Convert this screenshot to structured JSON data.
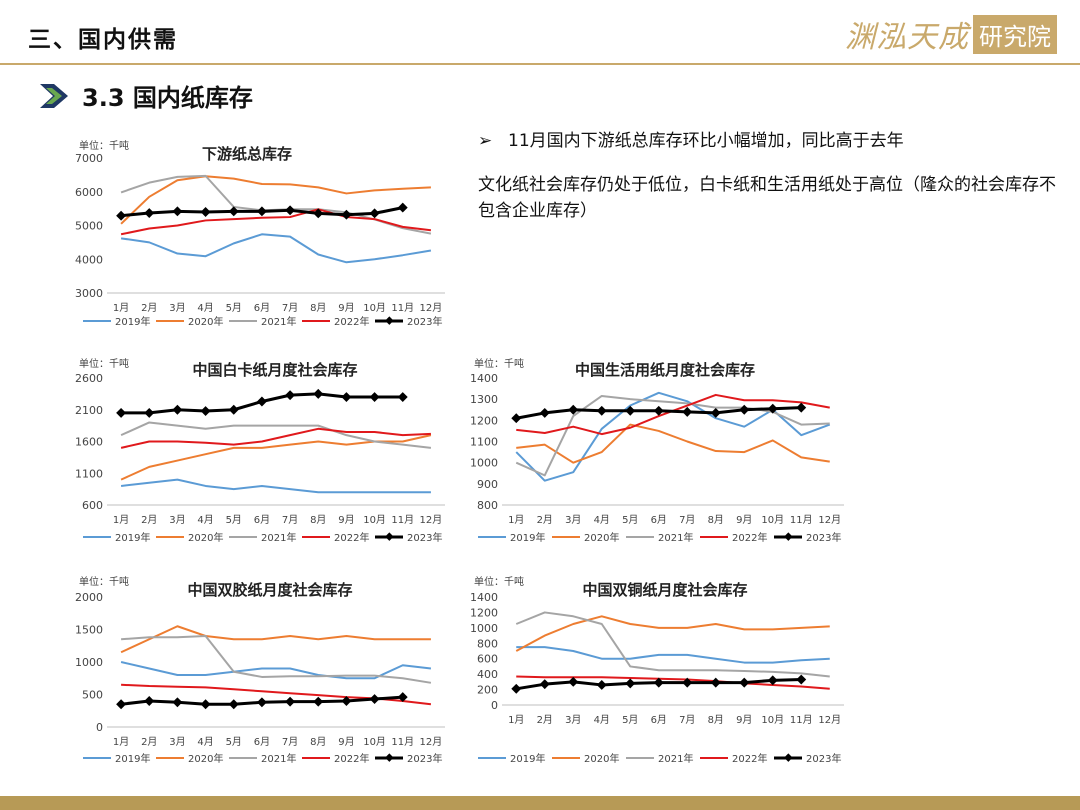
{
  "header": {
    "title": "三、国内供需",
    "logo_text": "渊泓天成",
    "logo_box": "研究院"
  },
  "section": {
    "title": "3.3 国内纸库存"
  },
  "notes": {
    "bullet": "➢",
    "line1": "11月国内下游纸总库存环比小幅增加，同比高于去年",
    "line2": "文化纸社会库存仍处于低位，白卡纸和生活用纸处于高位（隆众的社会库存不包含企业库存）"
  },
  "colors": {
    "2019年": "#5b9bd5",
    "2020年": "#ed7d31",
    "2021年": "#a5a5a5",
    "2022年": "#e0191c",
    "2023年": "#000000",
    "gold": "#c9a96b",
    "arrow": "#1f3864"
  },
  "chart_data": [
    {
      "type": "line",
      "title": "下游纸总库存",
      "unit": "单位：千吨",
      "categories": [
        "1月",
        "2月",
        "3月",
        "4月",
        "5月",
        "6月",
        "7月",
        "8月",
        "9月",
        "10月",
        "11月",
        "12月"
      ],
      "ylim": [
        3000,
        7000
      ],
      "yticks": [
        3000,
        4000,
        5000,
        6000,
        7000
      ],
      "legend": "bottom",
      "series": [
        {
          "name": "2019年",
          "values": [
            4620,
            4500,
            4170,
            4090,
            4470,
            4740,
            4670,
            4140,
            3910,
            4000,
            4120,
            4260
          ]
        },
        {
          "name": "2020年",
          "values": [
            5050,
            5850,
            6340,
            6460,
            6390,
            6230,
            6220,
            6130,
            5950,
            6040,
            6090,
            6130
          ]
        },
        {
          "name": "2021年",
          "values": [
            5980,
            6270,
            6440,
            6470,
            5550,
            5450,
            5480,
            5480,
            5390,
            5180,
            4920,
            4760
          ]
        },
        {
          "name": "2022年",
          "values": [
            4740,
            4910,
            5000,
            5150,
            5190,
            5230,
            5250,
            5480,
            5250,
            5190,
            4960,
            4860
          ]
        },
        {
          "name": "2023年",
          "values": [
            5290,
            5370,
            5420,
            5400,
            5420,
            5420,
            5450,
            5360,
            5320,
            5360,
            5530,
            null
          ]
        }
      ]
    },
    {
      "type": "line",
      "title": "中国白卡纸月度社会库存",
      "unit": "单位：千吨",
      "categories": [
        "1月",
        "2月",
        "3月",
        "4月",
        "5月",
        "6月",
        "7月",
        "8月",
        "9月",
        "10月",
        "11月",
        "12月"
      ],
      "ylim": [
        600,
        2600
      ],
      "yticks": [
        600,
        1100,
        1600,
        2100,
        2600
      ],
      "legend": "bottom",
      "series": [
        {
          "name": "2019年",
          "values": [
            900,
            950,
            1000,
            900,
            850,
            900,
            850,
            800,
            800,
            800,
            800,
            800
          ]
        },
        {
          "name": "2020年",
          "values": [
            1000,
            1200,
            1300,
            1400,
            1500,
            1500,
            1550,
            1600,
            1550,
            1600,
            1600,
            1700
          ]
        },
        {
          "name": "2021年",
          "values": [
            1700,
            1900,
            1850,
            1800,
            1850,
            1850,
            1850,
            1850,
            1700,
            1600,
            1550,
            1500
          ]
        },
        {
          "name": "2022年",
          "values": [
            1500,
            1600,
            1600,
            1580,
            1550,
            1600,
            1700,
            1800,
            1750,
            1750,
            1700,
            1720
          ]
        },
        {
          "name": "2023年",
          "values": [
            2050,
            2050,
            2100,
            2080,
            2100,
            2230,
            2330,
            2350,
            2300,
            2300,
            2300,
            null
          ]
        }
      ]
    },
    {
      "type": "line",
      "title": "中国生活用纸月度社会库存",
      "unit": "单位：千吨",
      "categories": [
        "1月",
        "2月",
        "3月",
        "4月",
        "5月",
        "6月",
        "7月",
        "8月",
        "9月",
        "10月",
        "11月",
        "12月"
      ],
      "ylim": [
        800,
        1400
      ],
      "yticks": [
        800,
        900,
        1000,
        1100,
        1200,
        1300,
        1400
      ],
      "legend": "bottom",
      "series": [
        {
          "name": "2019年",
          "values": [
            1050,
            915,
            955,
            1160,
            1270,
            1330,
            1290,
            1210,
            1170,
            1250,
            1130,
            1180
          ]
        },
        {
          "name": "2020年",
          "values": [
            1070,
            1085,
            1000,
            1050,
            1180,
            1150,
            1100,
            1055,
            1050,
            1105,
            1025,
            1005
          ]
        },
        {
          "name": "2021年",
          "values": [
            1000,
            940,
            1220,
            1315,
            1300,
            1290,
            1280,
            1260,
            1260,
            1240,
            1180,
            1185
          ]
        },
        {
          "name": "2022年",
          "values": [
            1155,
            1140,
            1170,
            1135,
            1165,
            1220,
            1270,
            1320,
            1295,
            1295,
            1285,
            1260
          ]
        },
        {
          "name": "2023年",
          "values": [
            1210,
            1235,
            1250,
            1245,
            1245,
            1245,
            1240,
            1235,
            1250,
            1255,
            1260,
            null
          ]
        }
      ]
    },
    {
      "type": "line",
      "title": "中国双胶纸月度社会库存",
      "unit": "单位：千吨",
      "categories": [
        "1月",
        "2月",
        "3月",
        "4月",
        "5月",
        "6月",
        "7月",
        "8月",
        "9月",
        "10月",
        "11月",
        "12月"
      ],
      "ylim": [
        0,
        2000
      ],
      "yticks": [
        0,
        500,
        1000,
        1500,
        2000
      ],
      "legend": "bottom",
      "series": [
        {
          "name": "2019年",
          "values": [
            1000,
            900,
            800,
            800,
            850,
            900,
            900,
            800,
            750,
            750,
            950,
            900
          ]
        },
        {
          "name": "2020年",
          "values": [
            1150,
            1350,
            1550,
            1400,
            1350,
            1350,
            1400,
            1350,
            1400,
            1350,
            1350,
            1350
          ]
        },
        {
          "name": "2021年",
          "values": [
            1350,
            1380,
            1380,
            1400,
            850,
            770,
            780,
            780,
            790,
            790,
            750,
            680
          ]
        },
        {
          "name": "2022年",
          "values": [
            650,
            630,
            620,
            610,
            580,
            550,
            520,
            490,
            460,
            440,
            400,
            350
          ]
        },
        {
          "name": "2023年",
          "values": [
            350,
            400,
            380,
            350,
            350,
            380,
            390,
            390,
            400,
            430,
            460,
            null
          ]
        }
      ]
    },
    {
      "type": "line",
      "title": "中国双铜纸月度社会库存",
      "unit": "单位：千吨",
      "categories": [
        "1月",
        "2月",
        "3月",
        "4月",
        "5月",
        "6月",
        "7月",
        "8月",
        "9月",
        "10月",
        "11月",
        "12月"
      ],
      "ylim": [
        0,
        1400
      ],
      "yticks": [
        0,
        200,
        400,
        600,
        800,
        1000,
        1200,
        1400
      ],
      "legend": "bottom",
      "series": [
        {
          "name": "2019年",
          "values": [
            750,
            750,
            700,
            600,
            600,
            650,
            650,
            600,
            550,
            550,
            580,
            600
          ]
        },
        {
          "name": "2020年",
          "values": [
            700,
            900,
            1050,
            1150,
            1050,
            1000,
            1000,
            1050,
            980,
            980,
            1000,
            1020
          ]
        },
        {
          "name": "2021年",
          "values": [
            1050,
            1200,
            1150,
            1050,
            500,
            450,
            450,
            450,
            440,
            430,
            410,
            370
          ]
        },
        {
          "name": "2022年",
          "values": [
            370,
            360,
            360,
            360,
            350,
            340,
            330,
            310,
            280,
            260,
            240,
            210
          ]
        },
        {
          "name": "2023年",
          "values": [
            210,
            270,
            300,
            260,
            280,
            290,
            290,
            290,
            290,
            320,
            330,
            null
          ]
        }
      ]
    }
  ]
}
